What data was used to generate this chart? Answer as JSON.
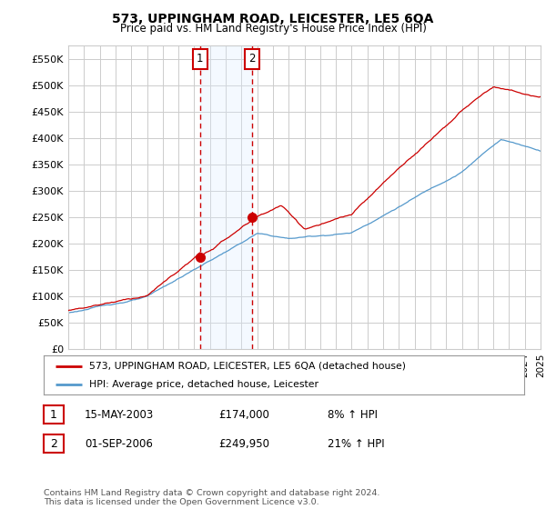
{
  "title": "573, UPPINGHAM ROAD, LEICESTER, LE5 6QA",
  "subtitle": "Price paid vs. HM Land Registry's House Price Index (HPI)",
  "ylabel_ticks": [
    "£0",
    "£50K",
    "£100K",
    "£150K",
    "£200K",
    "£250K",
    "£300K",
    "£350K",
    "£400K",
    "£450K",
    "£500K",
    "£550K"
  ],
  "ytick_values": [
    0,
    50000,
    100000,
    150000,
    200000,
    250000,
    300000,
    350000,
    400000,
    450000,
    500000,
    550000
  ],
  "ylim": [
    0,
    575000
  ],
  "xlim": [
    1995,
    2025
  ],
  "sale1_x": 2003.37,
  "sale1_y": 174000,
  "sale2_x": 2006.67,
  "sale2_y": 249950,
  "legend_line1": "573, UPPINGHAM ROAD, LEICESTER, LE5 6QA (detached house)",
  "legend_line2": "HPI: Average price, detached house, Leicester",
  "table_entries": [
    {
      "num": "1",
      "date": "15-MAY-2003",
      "price": "£174,000",
      "change": "8% ↑ HPI"
    },
    {
      "num": "2",
      "date": "01-SEP-2006",
      "price": "£249,950",
      "change": "21% ↑ HPI"
    }
  ],
  "footer": "Contains HM Land Registry data © Crown copyright and database right 2024.\nThis data is licensed under the Open Government Licence v3.0.",
  "hpi_color": "#5599cc",
  "price_color": "#cc0000",
  "shade_color": "#ddeeff",
  "background_color": "#ffffff",
  "grid_color": "#cccccc"
}
